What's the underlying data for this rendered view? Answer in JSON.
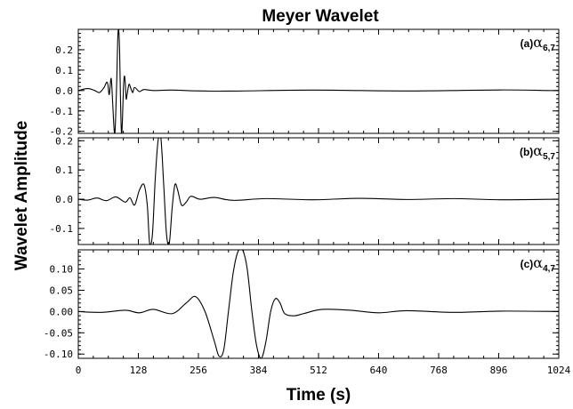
{
  "chart_data": {
    "type": "line",
    "title": "Meyer Wavelet",
    "ylabel": "Wavelet Amplitude",
    "xlabel": "Time (s)",
    "xlim": [
      0,
      1024
    ],
    "xticks": [
      0,
      128,
      256,
      384,
      512,
      640,
      768,
      896,
      1024
    ],
    "xtick_labels": [
      "0",
      "128",
      "256",
      "384",
      "512",
      "640",
      "768",
      "896",
      "1024"
    ],
    "grid": false,
    "panels": [
      {
        "label": "(a)",
        "symbol": "α",
        "subscript": "6,7",
        "ylim": [
          -0.21,
          0.3
        ],
        "yticks": [
          -0.2,
          -0.1,
          0.0,
          0.1,
          0.2
        ],
        "ytick_labels": [
          "-0.2",
          "-0.1",
          "0.0",
          "0.1",
          "0.2"
        ],
        "x": [
          0,
          20,
          35,
          45,
          55,
          60,
          63,
          66,
          70,
          73,
          76,
          78,
          80,
          82,
          84,
          86,
          88,
          90,
          92,
          94,
          96,
          98,
          100,
          102,
          104,
          108,
          112,
          116,
          120,
          130,
          140,
          160,
          200,
          300,
          500,
          700,
          900,
          1000,
          1024
        ],
        "y": [
          0.0,
          0.01,
          0.0,
          -0.01,
          0.015,
          0.04,
          0.03,
          -0.02,
          0.06,
          -0.05,
          -0.18,
          -0.21,
          -0.1,
          0.05,
          0.25,
          0.3,
          0.2,
          -0.05,
          -0.21,
          -0.15,
          0.0,
          0.07,
          0.04,
          -0.04,
          -0.02,
          0.03,
          0.01,
          -0.01,
          0.015,
          -0.005,
          0.005,
          0.0,
          0.002,
          -0.003,
          0.002,
          -0.002,
          0.003,
          0.0,
          0.0
        ]
      },
      {
        "label": "(b)",
        "symbol": "α",
        "subscript": "5,7",
        "ylim": [
          -0.155,
          0.21
        ],
        "yticks": [
          -0.1,
          0.0,
          0.1,
          0.2
        ],
        "ytick_labels": [
          "-0.1",
          "0.0",
          "0.1",
          "0.2"
        ],
        "x": [
          0,
          20,
          40,
          60,
          80,
          100,
          110,
          120,
          130,
          140,
          147,
          152,
          158,
          164,
          170,
          176,
          182,
          188,
          194,
          200,
          206,
          212,
          220,
          230,
          240,
          260,
          290,
          330,
          400,
          500,
          600,
          700,
          800,
          900,
          1024
        ],
        "y": [
          0.0,
          -0.003,
          0.004,
          -0.005,
          0.008,
          -0.01,
          0.005,
          -0.02,
          0.03,
          0.05,
          -0.02,
          -0.15,
          -0.12,
          0.07,
          0.2,
          0.21,
          0.05,
          -0.12,
          -0.15,
          -0.03,
          0.05,
          0.03,
          -0.02,
          -0.01,
          0.01,
          0.0,
          0.006,
          -0.004,
          0.002,
          -0.002,
          0.003,
          -0.001,
          0.002,
          -0.002,
          0.0
        ]
      },
      {
        "label": "(c)",
        "symbol": "α",
        "subscript": "4,7",
        "ylim": [
          -0.11,
          0.145
        ],
        "yticks": [
          -0.1,
          -0.05,
          0.0,
          0.05,
          0.1
        ],
        "ytick_labels": [
          "-0.10",
          "-0.05",
          "0.00",
          "0.05",
          "0.10"
        ],
        "x": [
          0,
          50,
          100,
          130,
          160,
          200,
          230,
          250,
          270,
          290,
          300,
          310,
          320,
          330,
          340,
          350,
          360,
          370,
          380,
          390,
          400,
          410,
          420,
          430,
          440,
          460,
          480,
          520,
          580,
          640,
          700,
          800,
          900,
          1024
        ],
        "y": [
          0.0,
          -0.002,
          0.003,
          -0.003,
          0.005,
          -0.005,
          0.02,
          0.035,
          0.0,
          -0.07,
          -0.105,
          -0.09,
          0.0,
          0.09,
          0.14,
          0.145,
          0.1,
          0.0,
          -0.08,
          -0.11,
          -0.07,
          0.0,
          0.03,
          0.02,
          -0.005,
          -0.01,
          -0.005,
          0.005,
          0.003,
          -0.003,
          0.002,
          -0.002,
          0.001,
          0.0
        ]
      }
    ]
  }
}
